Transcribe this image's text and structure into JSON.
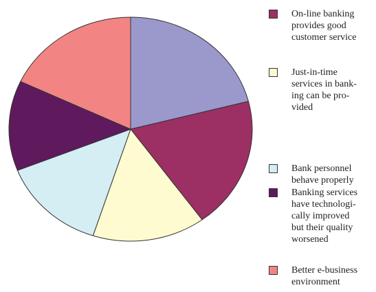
{
  "chart_data": {
    "type": "pie",
    "categories": [
      null,
      "On-line banking\nprovides good\ncustomer service",
      "Just-in-time\nservices in bank-\ning can be pro-\nvided",
      "Bank personnel\nbehave properly",
      "Banking services\nhave technologi-\ncally improved\nbut their quality\nworsened",
      "Better e-business\nenvironment"
    ],
    "values": [
      21,
      19,
      15,
      14,
      13,
      18
    ],
    "colors": [
      "#9b98cc",
      "#9c2f63",
      "#fdfbcf",
      "#d4eef3",
      "#5e1a5c",
      "#f38484"
    ]
  }
}
